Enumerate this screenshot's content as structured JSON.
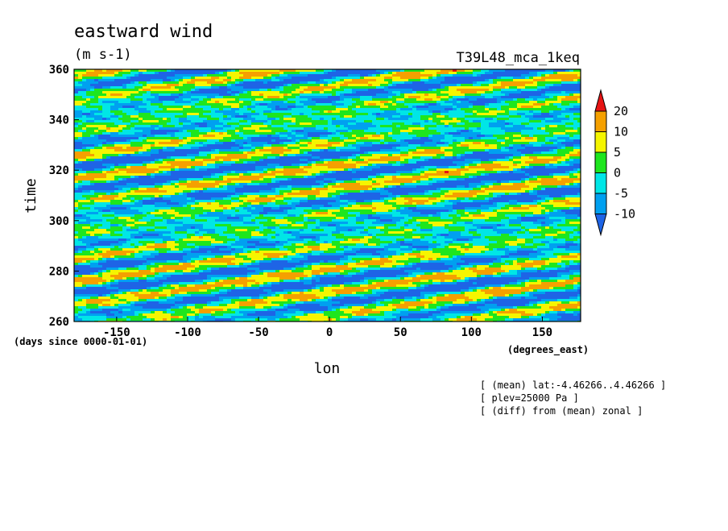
{
  "chart_data": {
    "type": "heatmap",
    "title": "eastward wind",
    "units": "(m s-1)",
    "run_label": "T39L48_mca_1keq",
    "xlabel": "lon",
    "ylabel": "time",
    "x_unit_label": "(degrees_east)",
    "y_unit_label": "(days since 0000-01-01)",
    "xlim": [
      -180,
      177
    ],
    "ylim": [
      260,
      360
    ],
    "x_ticks": [
      -150,
      -100,
      -50,
      0,
      50,
      100,
      150
    ],
    "x_tick_labels": [
      "-150",
      "-100",
      "-50",
      "0",
      "50",
      "100",
      "150"
    ],
    "y_ticks": [
      260,
      280,
      300,
      320,
      340,
      360
    ],
    "y_tick_labels": [
      "260",
      "280",
      "300",
      "320",
      "340",
      "360"
    ],
    "colorbar": {
      "levels": [
        -10,
        -5,
        0,
        5,
        10,
        20
      ],
      "labels": [
        "-10",
        "-5",
        "0",
        "5",
        "10",
        "20"
      ],
      "colors": [
        "#1e64e6",
        "#00a0f0",
        "#00e6e6",
        "#1ee61e",
        "#f5f500",
        "#f5a000",
        "#e61414"
      ]
    },
    "notes": [
      "[ (mean) lat:-4.46266..4.46266 ]",
      "[ plev=25000 Pa ]",
      "[ (diff) from (mean) zonal ]"
    ]
  }
}
